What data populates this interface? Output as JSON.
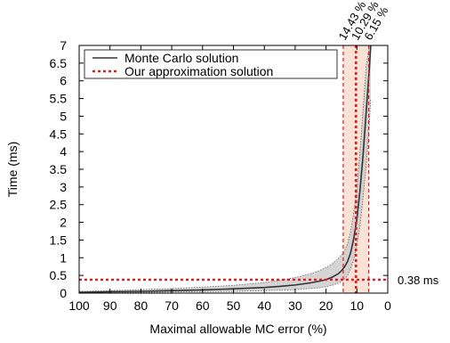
{
  "chart_data": {
    "type": "line",
    "xlabel": "Maximal allowable MC error (%)",
    "ylabel": "Time (ms)",
    "xlim": [
      100,
      0
    ],
    "ylim": [
      0,
      7
    ],
    "x_reversed": true,
    "x_ticks": [
      100,
      90,
      80,
      70,
      60,
      50,
      40,
      30,
      20,
      10,
      0
    ],
    "y_ticks": [
      0,
      0.5,
      1,
      1.5,
      2,
      2.5,
      3,
      3.5,
      4,
      4.5,
      5,
      5.5,
      6,
      6.5,
      7
    ],
    "x_tick_labels": [
      "100",
      "90",
      "80",
      "70",
      "60",
      "50",
      "40",
      "30",
      "20",
      "10",
      "0"
    ],
    "y_tick_labels": [
      "0",
      "0.5",
      "1",
      "1.5",
      "2",
      "2.5",
      "3",
      "3.5",
      "4",
      "4.5",
      "5",
      "5.5",
      "6",
      "6.5",
      "7"
    ],
    "grid": false,
    "legend_position": "top-left",
    "series": [
      {
        "name": "Monte Carlo solution",
        "style": "solid",
        "color": "#333333",
        "x": [
          100,
          90,
          80,
          70,
          60,
          50,
          40,
          35,
          30,
          25,
          22,
          20,
          18,
          16,
          15,
          14,
          13,
          12,
          11,
          10,
          9,
          8,
          7,
          6,
          5.5
        ],
        "y": [
          0.02,
          0.04,
          0.05,
          0.07,
          0.09,
          0.12,
          0.16,
          0.19,
          0.23,
          0.29,
          0.34,
          0.38,
          0.45,
          0.55,
          0.63,
          0.74,
          0.9,
          1.15,
          1.55,
          2.1,
          2.9,
          3.9,
          5.1,
          6.3,
          7.0
        ]
      },
      {
        "name": "Our approximation solution",
        "style": "dashed",
        "color": "#e41a1c",
        "horizontal_y": 0.38,
        "vertical_x": [
          14.43,
          10.29,
          6.15
        ]
      }
    ],
    "confidence_band": {
      "color": "#cccccc",
      "x": [
        100,
        90,
        80,
        70,
        60,
        50,
        40,
        35,
        30,
        25,
        22,
        20,
        18,
        16,
        15,
        14,
        13,
        12,
        11,
        10,
        9,
        8,
        7,
        6,
        5.5
      ],
      "lower": [
        0.0,
        0.01,
        0.02,
        0.03,
        0.04,
        0.05,
        0.07,
        0.08,
        0.1,
        0.13,
        0.15,
        0.18,
        0.22,
        0.28,
        0.33,
        0.4,
        0.5,
        0.7,
        0.95,
        1.35,
        1.9,
        2.7,
        3.6,
        4.7,
        5.5
      ],
      "upper": [
        0.05,
        0.07,
        0.1,
        0.13,
        0.17,
        0.22,
        0.3,
        0.36,
        0.44,
        0.55,
        0.64,
        0.72,
        0.83,
        0.98,
        1.08,
        1.2,
        1.4,
        1.75,
        2.3,
        3.0,
        4.0,
        5.2,
        6.4,
        7.0,
        7.0
      ]
    },
    "shaded_regions": [
      {
        "x_from": 14.43,
        "x_to": 6.15,
        "color": "#fbe2d6"
      }
    ],
    "annotations": {
      "top_labels": [
        "14.43 %",
        "10.29 %",
        "6.15 %"
      ],
      "right_label": "0.38 ms"
    }
  }
}
